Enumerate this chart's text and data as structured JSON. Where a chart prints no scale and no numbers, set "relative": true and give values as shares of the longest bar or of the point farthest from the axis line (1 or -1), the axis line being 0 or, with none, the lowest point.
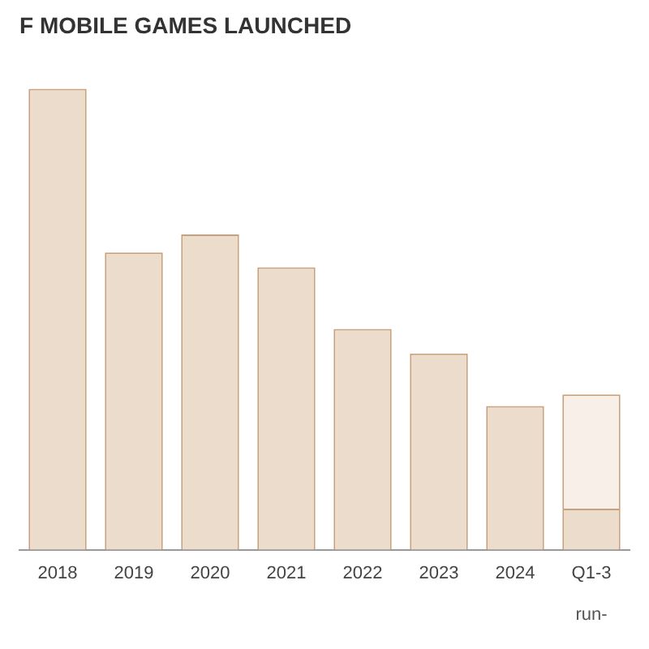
{
  "chart_data": {
    "type": "bar",
    "title": "F MOBILE GAMES LAUNCHED",
    "categories": [
      "2018",
      "2019",
      "2020",
      "2021",
      "2022",
      "2023",
      "2024",
      "Q1-3"
    ],
    "series": [
      {
        "color": "#ecdccb",
        "values": [
          1,
          0.645,
          0.684,
          0.613,
          0.479,
          0.426,
          0.312,
          0.089
        ]
      },
      {
        "color": "#f8f0e8",
        "values": [
          null,
          null,
          null,
          null,
          null,
          null,
          null,
          0.248
        ]
      }
    ],
    "stacked": true,
    "relative": true,
    "grid": false,
    "legend": false,
    "annotations": [
      "run-"
    ]
  }
}
